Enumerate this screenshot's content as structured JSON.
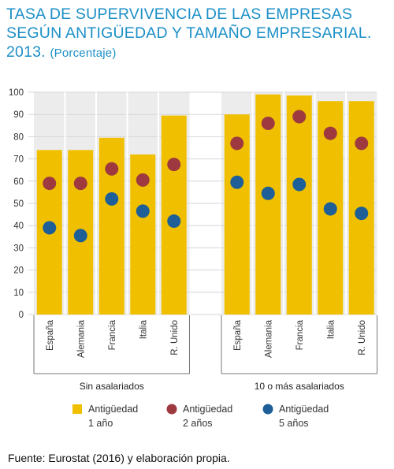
{
  "title": {
    "line1": "TASA DE SUPERVIVENCIA DE LAS EMPRESAS",
    "line2": "SEGÚN ANTIGÜEDAD Y TAMAÑO EMPRESARIAL.",
    "line3": "2013.",
    "unit": "(Porcentaje)"
  },
  "source": "Fuente: Eurostat (2016) y elaboración propia.",
  "chart_data": {
    "type": "bar",
    "ylim": [
      0,
      100
    ],
    "yticks": [
      0,
      10,
      20,
      30,
      40,
      50,
      60,
      70,
      80,
      90,
      100
    ],
    "grid": true,
    "colors": {
      "band": "#ececec",
      "bar": "#f0c000",
      "dot2": "#9e3a3f",
      "dot5": "#1d5f96",
      "text": "#333333"
    },
    "groups": [
      {
        "label": "Sin asalariados",
        "categories": [
          "España",
          "Alemania",
          "Francia",
          "Italia",
          "R. Unido"
        ],
        "series": [
          {
            "name": "Antigüedad 1 año",
            "values": [
              74,
              74,
              79.5,
              72,
              89.5
            ]
          },
          {
            "name": "Antigüedad 2 años",
            "values": [
              59,
              59,
              65.5,
              60.5,
              67.5
            ]
          },
          {
            "name": "Antigüedad 5 años",
            "values": [
              39,
              35.5,
              52,
              46.5,
              42
            ]
          }
        ]
      },
      {
        "label": "10 o más asalariados",
        "categories": [
          "España",
          "Alemania",
          "Francia",
          "Italia",
          "R. Unido"
        ],
        "series": [
          {
            "name": "Antigüedad 1 año",
            "values": [
              90,
              99,
              98.5,
              96,
              96
            ]
          },
          {
            "name": "Antigüedad 2 años",
            "values": [
              77,
              86,
              89,
              81.5,
              77
            ]
          },
          {
            "name": "Antigüedad 5 años",
            "values": [
              59.5,
              54.5,
              58.5,
              47.5,
              45.5
            ]
          }
        ]
      }
    ],
    "legend": [
      {
        "line1": "Antigüedad",
        "line2": "1 año",
        "marker": "square"
      },
      {
        "line1": "Antigüedad",
        "line2": "2 años",
        "marker": "circle"
      },
      {
        "line1": "Antigüedad",
        "line2": "5 años",
        "marker": "circle"
      }
    ],
    "legend_position": "bottom"
  }
}
